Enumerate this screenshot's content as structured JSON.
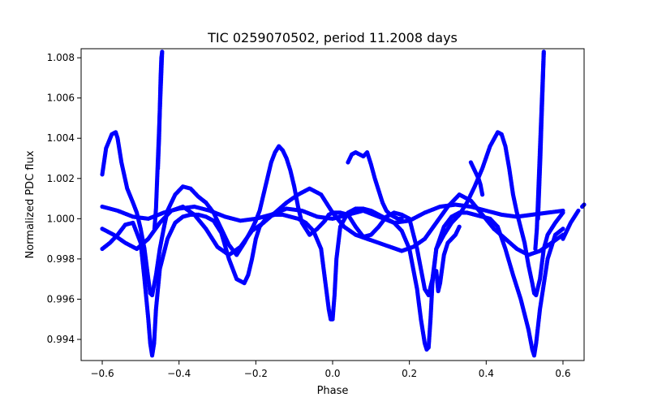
{
  "chart_data": {
    "type": "scatter",
    "title": "TIC 0259070502, period 11.2008 days",
    "xlabel": "Phase",
    "ylabel": "Normalized PDC flux",
    "xlim": [
      -0.655,
      0.655
    ],
    "ylim": [
      0.99295,
      1.00845
    ],
    "x_ticks": [
      -0.6,
      -0.4,
      -0.2,
      0.0,
      0.2,
      0.4,
      0.6
    ],
    "x_tick_labels": [
      "−0.6",
      "−0.4",
      "−0.2",
      "0.0",
      "0.2",
      "0.4",
      "0.6"
    ],
    "y_ticks": [
      0.994,
      0.996,
      0.998,
      1.0,
      1.002,
      1.004,
      1.006,
      1.008
    ],
    "y_tick_labels": [
      "0.994",
      "0.996",
      "0.998",
      "1.000",
      "1.002",
      "1.004",
      "1.006",
      "1.008"
    ],
    "grid": false,
    "legend": "none",
    "marker_color": "#0000ff",
    "series": [
      {
        "x": [
          -0.6,
          -0.59,
          -0.575,
          -0.565,
          -0.56,
          -0.55,
          -0.535,
          -0.52,
          -0.51,
          -0.5,
          -0.49,
          -0.48,
          -0.475,
          -0.47,
          -0.46,
          -0.45,
          -0.44,
          -0.43,
          -0.41,
          -0.39,
          -0.37,
          -0.35,
          -0.33,
          -0.31,
          -0.29,
          -0.27,
          -0.25,
          -0.23,
          -0.21,
          -0.2,
          -0.19,
          -0.18,
          -0.17,
          -0.16,
          -0.15,
          -0.14,
          -0.13,
          -0.12,
          -0.11,
          -0.1,
          -0.09,
          -0.08,
          -0.06,
          -0.04,
          -0.02,
          -0.01,
          0.0,
          0.01,
          0.02,
          0.04,
          0.06,
          0.08,
          0.1,
          0.12,
          0.14,
          0.16,
          0.18,
          0.2,
          0.22,
          0.23,
          0.24,
          0.25,
          0.26,
          0.27,
          0.29,
          0.31,
          0.33,
          0.35,
          0.37,
          0.39,
          0.41,
          0.43,
          0.44,
          0.45,
          0.46,
          0.47,
          0.48,
          0.5,
          0.51,
          0.52,
          0.525,
          0.53,
          0.54,
          0.55,
          0.56,
          0.58,
          0.6
        ],
        "y": [
          1.0022,
          1.0035,
          1.0042,
          1.0043,
          1.004,
          1.0028,
          1.0015,
          1.0008,
          1.0003,
          0.9995,
          0.9985,
          0.997,
          0.9963,
          0.9962,
          0.9972,
          0.9985,
          0.9995,
          1.0004,
          1.0012,
          1.0016,
          1.0015,
          1.0011,
          1.0008,
          1.0003,
          0.9995,
          0.9987,
          0.9982,
          0.9988,
          0.9995,
          0.9999,
          1.0004,
          1.0012,
          1.002,
          1.0028,
          1.0033,
          1.0036,
          1.0034,
          1.003,
          1.0024,
          1.0016,
          1.0006,
          0.9998,
          0.9992,
          0.9995,
          0.9999,
          1.0002,
          1.0003,
          1.0003,
          1.0003,
          1.0002,
          0.9996,
          0.9991,
          0.9992,
          0.9996,
          1.0001,
          1.0003,
          1.0002,
          1.0,
          0.9985,
          0.9975,
          0.9965,
          0.9962,
          0.997,
          0.9985,
          0.9992,
          0.9998,
          1.0002,
          1.0008,
          1.0016,
          1.0025,
          1.0036,
          1.0043,
          1.0042,
          1.0036,
          1.0025,
          1.0012,
          1.0003,
          0.9988,
          0.9977,
          0.9968,
          0.9963,
          0.9962,
          0.997,
          0.9985,
          0.9992,
          0.9998,
          1.0003
        ]
      },
      {
        "x": [
          -0.6,
          -0.58,
          -0.56,
          -0.54,
          -0.52,
          -0.5,
          -0.49,
          -0.48,
          -0.475,
          -0.47,
          -0.465,
          -0.46,
          -0.45,
          -0.43,
          -0.41,
          -0.39,
          -0.37,
          -0.35,
          -0.33,
          -0.31,
          -0.29,
          -0.27,
          -0.25,
          -0.23,
          -0.22,
          -0.21,
          -0.2,
          -0.19,
          -0.17,
          -0.15,
          -0.13,
          -0.11,
          -0.09,
          -0.07,
          -0.05,
          -0.03,
          -0.02,
          -0.01,
          -0.005,
          0.0,
          0.005,
          0.01,
          0.02,
          0.04,
          0.06,
          0.08,
          0.1,
          0.12,
          0.14,
          0.16,
          0.18,
          0.2,
          0.22,
          0.23,
          0.24,
          0.245,
          0.25,
          0.255,
          0.26,
          0.27,
          0.29,
          0.31,
          0.33,
          0.35,
          0.37,
          0.39,
          0.41,
          0.43,
          0.45,
          0.47,
          0.49,
          0.51,
          0.52,
          0.525,
          0.53,
          0.54,
          0.56,
          0.58,
          0.6
        ],
        "y": [
          0.9985,
          0.9988,
          0.9992,
          0.9997,
          0.9998,
          0.9988,
          0.997,
          0.995,
          0.9938,
          0.9932,
          0.9938,
          0.9955,
          0.9975,
          0.999,
          0.9998,
          1.0001,
          1.0002,
          1.0002,
          1.0001,
          0.9999,
          0.9993,
          0.998,
          0.997,
          0.9968,
          0.9972,
          0.998,
          0.999,
          0.9996,
          1.0001,
          1.0002,
          1.0002,
          1.0001,
          1.0,
          0.9998,
          0.9994,
          0.9985,
          0.997,
          0.9955,
          0.995,
          0.995,
          0.9962,
          0.998,
          0.9996,
          1.0003,
          1.0005,
          1.0005,
          1.0004,
          1.0002,
          1.0,
          0.9998,
          0.9994,
          0.9985,
          0.9965,
          0.995,
          0.9938,
          0.9935,
          0.9936,
          0.995,
          0.9968,
          0.9985,
          0.9996,
          1.0001,
          1.0003,
          1.0003,
          1.0002,
          1.0001,
          1.0,
          0.9996,
          0.9985,
          0.9972,
          0.996,
          0.9945,
          0.9935,
          0.9932,
          0.9938,
          0.9955,
          0.998,
          0.9992,
          0.9995
        ]
      },
      {
        "x": [
          -0.455,
          -0.452,
          -0.45,
          -0.448,
          -0.446,
          -0.444,
          -0.46,
          -0.464,
          0.535,
          0.538,
          0.541,
          0.544,
          0.547,
          0.55,
          0.532,
          0.528
        ],
        "y": [
          1.0025,
          1.004,
          1.0055,
          1.007,
          1.008,
          1.0083,
          1.0005,
          0.9995,
          1.0,
          1.0015,
          1.003,
          1.0048,
          1.0065,
          1.0083,
          0.9995,
          0.9985
        ]
      },
      {
        "x": [
          0.04,
          0.05,
          0.06,
          0.07,
          0.08,
          0.09,
          0.095,
          0.1,
          0.11,
          0.12,
          0.13,
          0.14,
          0.15,
          0.16,
          0.17,
          0.18
        ],
        "y": [
          1.0028,
          1.0032,
          1.0033,
          1.0032,
          1.0031,
          1.0033,
          1.003,
          1.0027,
          1.002,
          1.0014,
          1.0008,
          1.0004,
          1.0002,
          1.0001,
          1.0,
          1.0
        ]
      },
      {
        "x": [
          -0.6,
          -0.56,
          -0.52,
          -0.48,
          -0.44,
          -0.4,
          -0.36,
          -0.32,
          -0.28,
          -0.24,
          -0.2,
          -0.16,
          -0.12,
          -0.08,
          -0.04,
          0.0,
          0.04,
          0.08,
          0.12,
          0.16,
          0.2,
          0.24,
          0.28,
          0.32,
          0.36,
          0.4,
          0.44,
          0.48,
          0.52,
          0.56,
          0.6
        ],
        "y": [
          1.0006,
          1.0004,
          1.0001,
          1.0,
          1.0003,
          1.0005,
          1.0006,
          1.0004,
          1.0001,
          0.9999,
          1.0,
          1.0002,
          1.0005,
          1.0004,
          1.0001,
          1.0,
          1.0002,
          1.0004,
          1.0001,
          0.9998,
          0.9999,
          1.0003,
          1.0006,
          1.0007,
          1.0006,
          1.0004,
          1.0002,
          1.0001,
          1.0002,
          1.0003,
          1.0004
        ]
      },
      {
        "x": [
          -0.6,
          -0.57,
          -0.54,
          -0.51,
          -0.48,
          -0.45,
          -0.42,
          -0.39,
          -0.36,
          -0.33,
          -0.3,
          -0.27,
          -0.24,
          -0.21,
          -0.18,
          -0.15,
          -0.12,
          -0.09,
          -0.06,
          -0.03,
          0.0,
          0.03,
          0.06,
          0.09,
          0.12,
          0.15,
          0.18,
          0.21,
          0.24,
          0.27,
          0.3,
          0.33,
          0.36,
          0.39,
          0.42,
          0.45,
          0.48,
          0.51,
          0.54,
          0.57,
          0.6
        ],
        "y": [
          0.9995,
          0.9992,
          0.9988,
          0.9985,
          0.999,
          0.9998,
          1.0004,
          1.0006,
          1.0002,
          0.9995,
          0.9986,
          0.9982,
          0.9986,
          0.9994,
          0.9998,
          1.0003,
          1.0008,
          1.0012,
          1.0015,
          1.0012,
          1.0003,
          0.9996,
          0.9992,
          0.999,
          0.9988,
          0.9986,
          0.9984,
          0.9986,
          0.999,
          0.9998,
          1.0006,
          1.0012,
          1.0009,
          1.0002,
          0.9995,
          0.999,
          0.9985,
          0.9982,
          0.9984,
          0.9988,
          0.9992
        ]
      },
      {
        "x": [
          0.36,
          0.37,
          0.375,
          0.38,
          0.385,
          0.39,
          0.27,
          0.275,
          0.28,
          0.285,
          0.29,
          0.3,
          0.31,
          0.32,
          0.33
        ],
        "y": [
          1.0028,
          1.0024,
          1.0022,
          1.002,
          1.0017,
          1.0012,
          0.9974,
          0.9964,
          0.9968,
          0.9975,
          0.9982,
          0.9988,
          0.999,
          0.9992,
          0.9996
        ]
      },
      {
        "x": [
          0.65,
          0.66,
          0.67,
          0.68,
          0.69,
          0.6,
          0.61,
          0.62,
          0.63,
          0.64
        ],
        "y": [
          1.0006,
          1.0008,
          1.001,
          1.0012,
          1.0013,
          0.999,
          0.9994,
          0.9998,
          1.0001,
          1.0004
        ]
      }
    ]
  }
}
